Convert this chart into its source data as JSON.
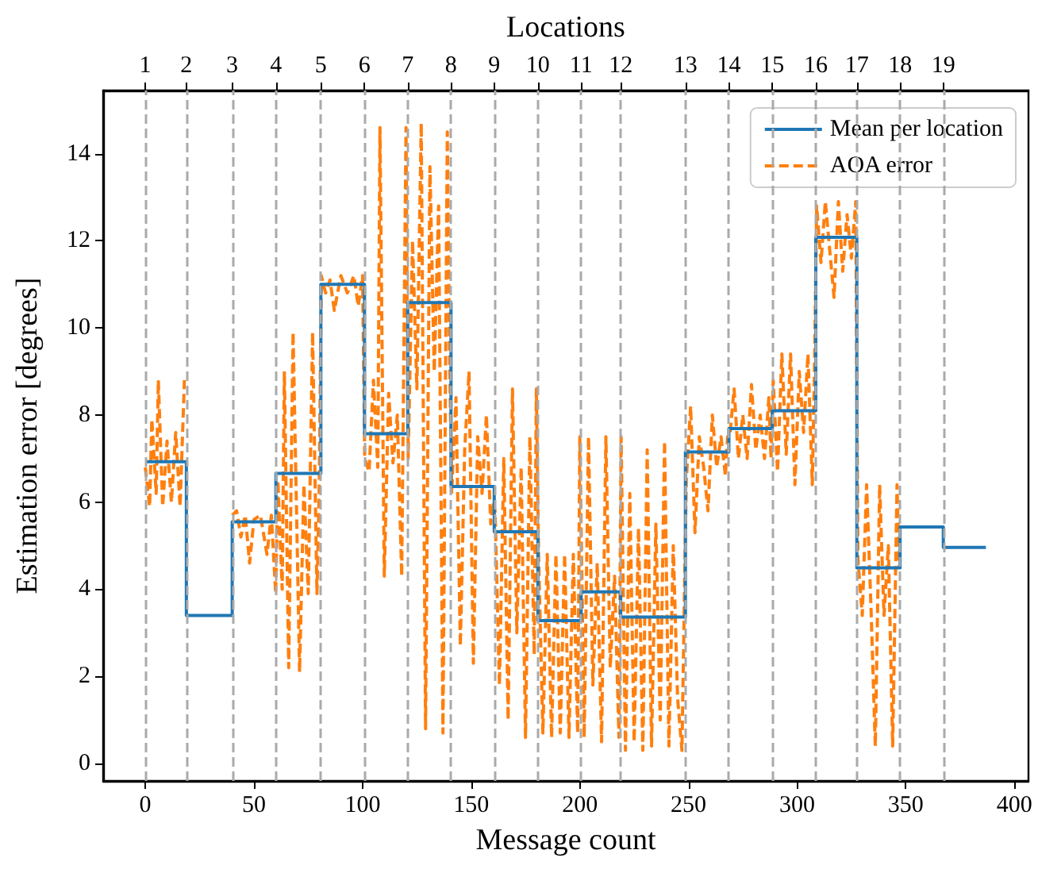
{
  "chart_data": {
    "type": "line",
    "xlabel": "Message count",
    "ylabel": "Estimation error [degrees]",
    "x2label": "Locations",
    "xlim": [
      -19.4,
      406.5
    ],
    "xticks": [
      0,
      50,
      100,
      150,
      200,
      250,
      300,
      350,
      400
    ],
    "ylim": [
      -0.4,
      15.45
    ],
    "yticks": [
      0,
      2,
      4,
      6,
      8,
      10,
      12,
      14
    ],
    "annotations": [
      "1",
      "2",
      "3",
      "4",
      "5",
      "6",
      "7",
      "8",
      "9",
      "10",
      "11",
      "12",
      "13",
      "14",
      "15",
      "16",
      "17",
      "18",
      "19"
    ],
    "legend": "top right",
    "grid": false,
    "marker": "none",
    "ref_lines": [
      {
        "axis": "x",
        "value": 0,
        "color": "#aaaaaa",
        "line_style": "dashed"
      },
      {
        "axis": "x",
        "value": 18.9,
        "color": "#aaaaaa",
        "line_style": "dashed"
      },
      {
        "axis": "x",
        "value": 40,
        "color": "#aaaaaa",
        "line_style": "dashed"
      },
      {
        "axis": "x",
        "value": 60.1,
        "color": "#aaaaaa",
        "line_style": "dashed"
      },
      {
        "axis": "x",
        "value": 80.8,
        "color": "#aaaaaa",
        "line_style": "dashed"
      },
      {
        "axis": "x",
        "value": 100.9,
        "color": "#aaaaaa",
        "line_style": "dashed"
      },
      {
        "axis": "x",
        "value": 120.8,
        "color": "#aaaaaa",
        "line_style": "dashed"
      },
      {
        "axis": "x",
        "value": 140.7,
        "color": "#aaaaaa",
        "line_style": "dashed"
      },
      {
        "axis": "x",
        "value": 160.6,
        "color": "#aaaaaa",
        "line_style": "dashed"
      },
      {
        "axis": "x",
        "value": 180.7,
        "color": "#aaaaaa",
        "line_style": "dashed"
      },
      {
        "axis": "x",
        "value": 200.6,
        "color": "#aaaaaa",
        "line_style": "dashed"
      },
      {
        "axis": "x",
        "value": 218.8,
        "color": "#aaaaaa",
        "line_style": "dashed"
      },
      {
        "axis": "x",
        "value": 248.6,
        "color": "#aaaaaa",
        "line_style": "dashed"
      },
      {
        "axis": "x",
        "value": 268.6,
        "color": "#aaaaaa",
        "line_style": "dashed"
      },
      {
        "axis": "x",
        "value": 288.6,
        "color": "#aaaaaa",
        "line_style": "dashed"
      },
      {
        "axis": "x",
        "value": 308.6,
        "color": "#aaaaaa",
        "line_style": "dashed"
      },
      {
        "axis": "x",
        "value": 327.5,
        "color": "#aaaaaa",
        "line_style": "dashed"
      },
      {
        "axis": "x",
        "value": 347.4,
        "color": "#aaaaaa",
        "line_style": "dashed"
      },
      {
        "axis": "x",
        "value": 367.3,
        "color": "#aaaaaa",
        "line_style": "dashed"
      }
    ],
    "series": [
      {
        "name": "Mean per location",
        "type": "step",
        "color": "#1f77b4",
        "line_style": "solid",
        "x": [
          0,
          18.9,
          40,
          60.1,
          80.8,
          100.9,
          120.8,
          140.7,
          160.6,
          180.7,
          200.6,
          218.8,
          248.6,
          268.6,
          288.6,
          308.6,
          327.5,
          347.4,
          367.3,
          386.9
        ],
        "values": [
          6.93,
          3.4,
          5.55,
          6.66,
          11.0,
          7.57,
          10.58,
          6.36,
          5.32,
          3.28,
          3.94,
          3.36,
          7.15,
          7.69,
          8.1,
          12.08,
          4.49,
          5.43,
          4.96,
          4.96
        ]
      },
      {
        "name": "AOA error",
        "color": "#ff7f0e",
        "line_style": "dashed",
        "x": [
          0,
          2,
          3,
          5,
          6,
          8,
          10,
          12,
          14,
          16,
          18,
          19,
          40,
          42,
          44,
          46,
          48,
          50,
          53,
          56,
          58,
          60,
          61,
          63,
          64,
          66,
          68,
          70,
          71,
          73,
          75,
          77,
          79,
          80,
          81,
          83,
          85,
          87,
          90,
          93,
          96,
          98,
          100,
          101,
          103,
          105,
          107,
          108,
          110,
          112,
          114,
          116,
          118,
          120,
          121,
          123,
          125,
          127,
          129,
          131,
          133,
          135,
          137,
          139,
          140,
          141,
          143,
          145,
          147,
          149,
          151,
          153,
          155,
          157,
          159,
          160,
          161,
          163,
          165,
          167,
          169,
          171,
          173,
          175,
          177,
          179,
          180,
          181,
          183,
          185,
          187,
          189,
          191,
          193,
          195,
          197,
          199,
          200,
          202,
          204,
          206,
          208,
          210,
          212,
          214,
          216,
          218,
          219,
          221,
          223,
          225,
          227,
          229,
          231,
          233,
          235,
          237,
          239,
          241,
          243,
          245,
          247,
          249,
          251,
          253,
          255,
          257,
          259,
          261,
          263,
          265,
          267,
          268,
          269,
          271,
          273,
          275,
          277,
          279,
          281,
          283,
          285,
          287,
          288,
          289,
          291,
          293,
          295,
          297,
          299,
          301,
          303,
          305,
          307,
          308,
          309,
          311,
          313,
          315,
          317,
          319,
          321,
          323,
          325,
          327,
          328,
          330,
          332,
          334,
          336,
          338,
          340,
          342,
          344,
          346,
          347
        ],
        "values": [
          6.8,
          5.9,
          7.9,
          6.2,
          8.8,
          5.9,
          7.4,
          6.0,
          7.6,
          5.9,
          8.8,
          null,
          5.7,
          5.8,
          5.2,
          5.7,
          4.6,
          5.6,
          5.7,
          4.8,
          5.7,
          3.9,
          6.5,
          4.0,
          9.0,
          2.2,
          9.9,
          4.8,
          2.1,
          6.4,
          3.9,
          9.9,
          3.9,
          6.2,
          11.2,
          10.8,
          11.1,
          10.4,
          11.2,
          10.8,
          11.2,
          10.5,
          11.2,
          7.0,
          6.7,
          8.8,
          6.8,
          14.6,
          4.3,
          8.5,
          6.9,
          8.0,
          4.3,
          14.6,
          7.0,
          12.0,
          8.6,
          14.7,
          0.8,
          13.7,
          9.0,
          12.8,
          0.7,
          14.5,
          9.5,
          6.2,
          8.4,
          2.7,
          7.2,
          9.0,
          2.3,
          7.5,
          6.2,
          8.0,
          5.5,
          6.0,
          5.8,
          1.8,
          7.0,
          1.0,
          8.6,
          3.0,
          6.8,
          0.6,
          7.5,
          2.5,
          8.6,
          4.8,
          0.7,
          4.8,
          0.6,
          4.8,
          0.7,
          4.8,
          0.6,
          4.8,
          0.7,
          7.5,
          0.6,
          7.5,
          1.8,
          4.6,
          0.5,
          7.5,
          2.2,
          4.3,
          0.6,
          7.5,
          0.3,
          6.2,
          0.5,
          5.4,
          0.3,
          7.2,
          0.4,
          5.5,
          1.0,
          7.4,
          0.4,
          5.0,
          1.5,
          0.3,
          6.5,
          8.2,
          5.3,
          7.5,
          6.8,
          5.8,
          8.0,
          6.8,
          7.5,
          6.6,
          7.5,
          7.5,
          8.6,
          7.0,
          8.0,
          7.0,
          8.7,
          7.2,
          8.0,
          7.0,
          8.4,
          7.0,
          8.8,
          6.7,
          9.4,
          7.1,
          9.4,
          6.4,
          9.0,
          7.6,
          9.4,
          6.4,
          9.0,
          12.8,
          11.5,
          12.9,
          11.8,
          10.7,
          12.9,
          11.3,
          12.6,
          11.6,
          12.9,
          4.7,
          3.4,
          6.4,
          3.6,
          0.4,
          6.4,
          3.4,
          5.0,
          0.4,
          6.4,
          4.5
        ]
      }
    ]
  }
}
